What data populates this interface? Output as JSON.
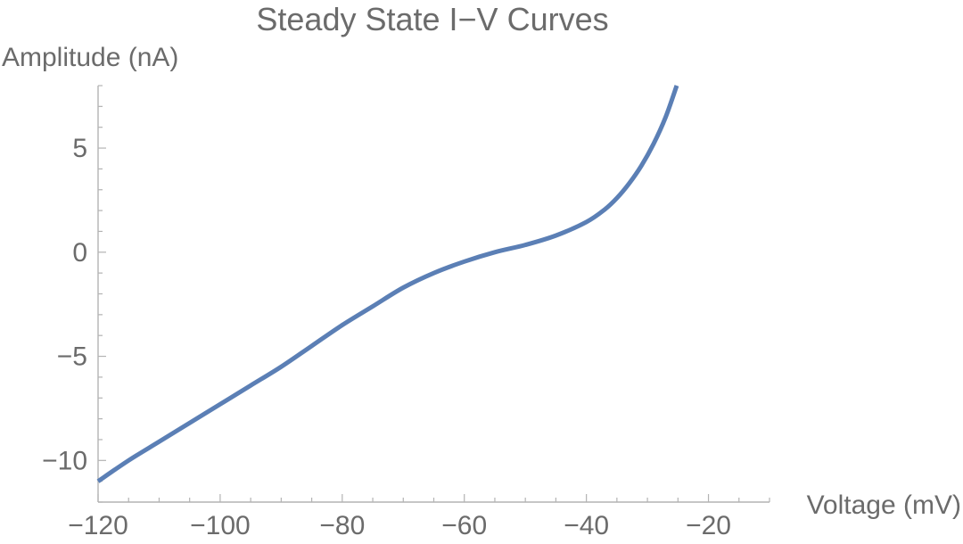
{
  "chart_data": {
    "type": "line",
    "title": "Steady State I−V Curves",
    "xlabel": "Voltage (mV)",
    "ylabel": "Amplitude (nA)",
    "xlim": [
      -120,
      -10
    ],
    "ylim": [
      -12,
      8
    ],
    "x_ticks": [
      -120,
      -100,
      -80,
      -60,
      -40,
      -20
    ],
    "x_tick_labels": [
      "−120",
      "−100",
      "−80",
      "−60",
      "−40",
      "−20"
    ],
    "y_ticks": [
      -10,
      -5,
      0,
      5
    ],
    "y_tick_labels": [
      "−10",
      "−5",
      "0",
      "5"
    ],
    "grid": false,
    "series": [
      {
        "color": "#5b7fb5",
        "x": [
          -120,
          -115,
          -110,
          -105,
          -100,
          -95,
          -90,
          -85,
          -80,
          -75,
          -70,
          -65,
          -60,
          -55,
          -50,
          -45,
          -40,
          -37,
          -35,
          -33,
          -31,
          -29,
          -27,
          -25.2
        ],
        "y": [
          -11.0,
          -10.0,
          -9.1,
          -8.2,
          -7.3,
          -6.4,
          -5.5,
          -4.5,
          -3.5,
          -2.6,
          -1.7,
          -1.0,
          -0.45,
          0.0,
          0.35,
          0.8,
          1.45,
          2.05,
          2.6,
          3.3,
          4.15,
          5.2,
          6.5,
          8.0
        ]
      }
    ]
  }
}
